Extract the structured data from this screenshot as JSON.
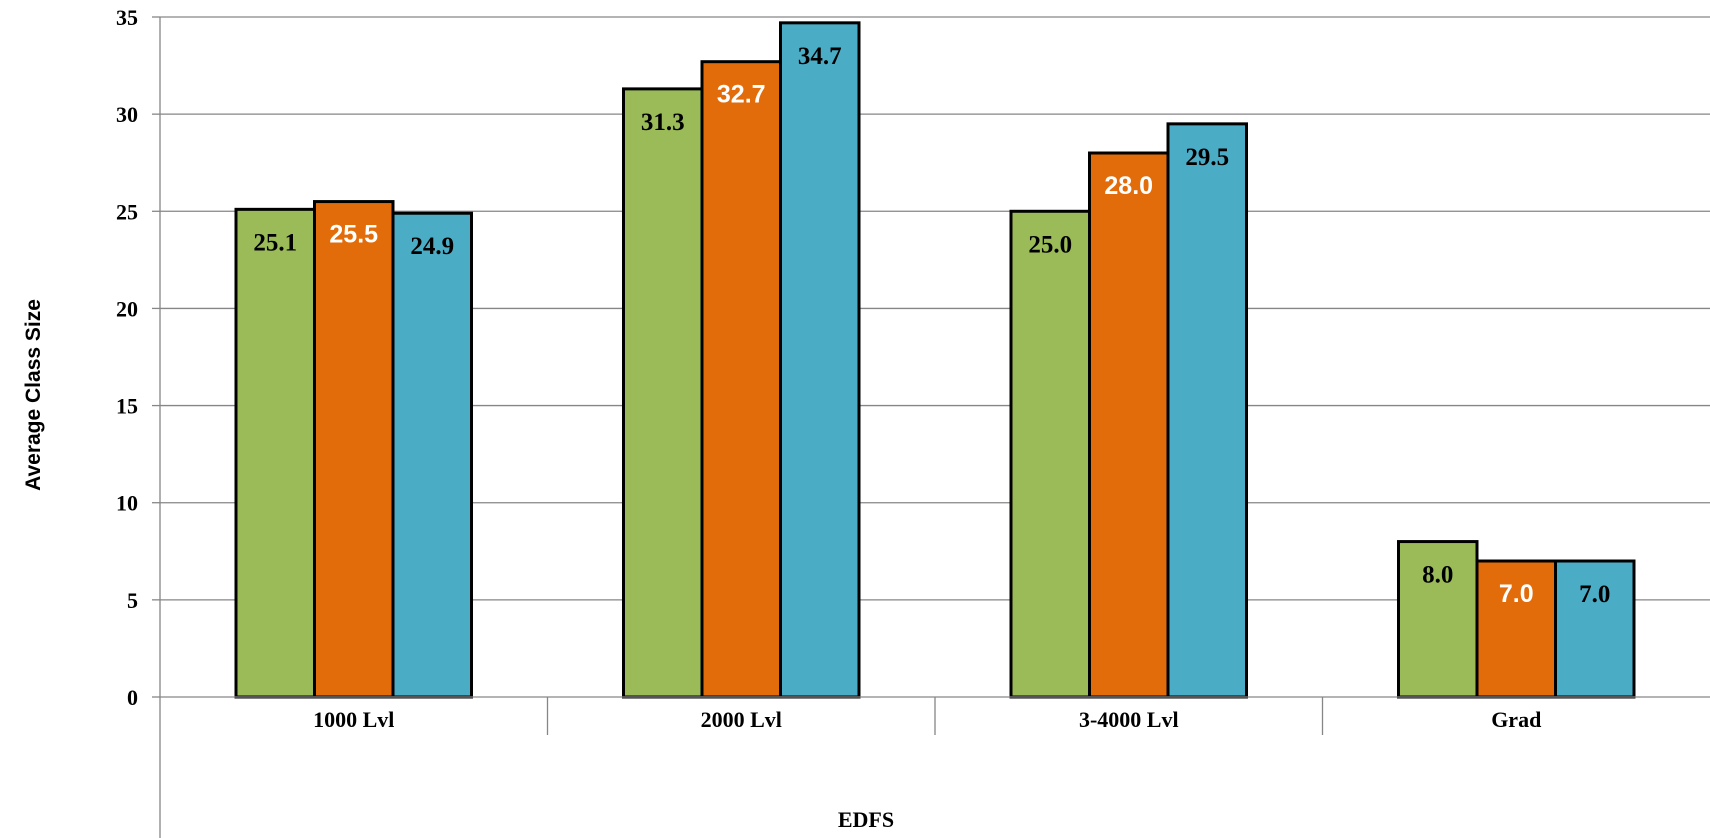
{
  "chart_data": {
    "type": "bar",
    "title": "",
    "xlabel": "EDFS",
    "ylabel": "Average Class Size",
    "ylim": [
      0,
      35
    ],
    "yticks": [
      0,
      5,
      10,
      15,
      20,
      25,
      30,
      35
    ],
    "ytick_labels": [
      "0",
      "5",
      "10",
      "15",
      "20",
      "25",
      "30",
      "35"
    ],
    "grid": true,
    "legend": "none",
    "categories": [
      "1000 Lvl",
      "2000 Lvl",
      "3-4000 Lvl",
      "Grad"
    ],
    "series": [
      {
        "values": [
          25.1,
          31.3,
          25.0,
          8.0
        ],
        "labels": [
          "25.1",
          "31.3",
          "25.0",
          "8.0"
        ],
        "color": "#9bbb59",
        "label_color": "#000000"
      },
      {
        "values": [
          25.5,
          32.7,
          28.0,
          7.0
        ],
        "labels": [
          "25.5",
          "32.7",
          "28.0",
          "7.0"
        ],
        "color": "#e36c0a",
        "label_color": "#ffffff"
      },
      {
        "values": [
          24.9,
          34.7,
          29.5,
          7.0
        ],
        "labels": [
          "24.9",
          "34.7",
          "29.5",
          "7.0"
        ],
        "color": "#4bacc6",
        "label_color": "#000000"
      }
    ]
  }
}
